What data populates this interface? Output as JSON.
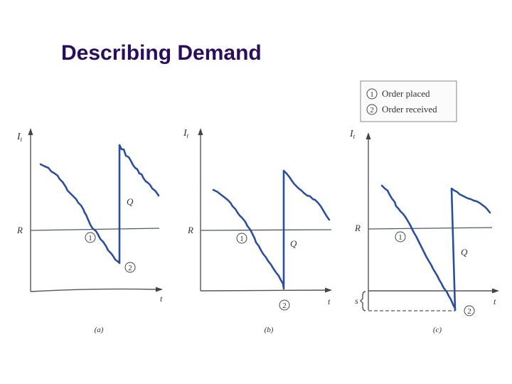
{
  "title": "Describing Demand",
  "legend": {
    "items": [
      {
        "marker": "1",
        "label": "Order placed"
      },
      {
        "marker": "2",
        "label": "Order received"
      }
    ]
  },
  "panels": {
    "a": {
      "ylabel": "I",
      "ysub": "t",
      "xlabel": "t",
      "r_label": "R",
      "q_label": "Q",
      "marker1": "1",
      "marker2": "2",
      "caption": "(a)"
    },
    "b": {
      "ylabel": "I",
      "ysub": "t",
      "xlabel": "t",
      "r_label": "R",
      "q_label": "Q",
      "marker1": "1",
      "marker2": "2",
      "caption": "(b)"
    },
    "c": {
      "ylabel": "I",
      "ysub": "t",
      "xlabel": "t",
      "r_label": "R",
      "q_label": "Q",
      "s_label": "s",
      "marker1": "1",
      "marker2": "2",
      "caption": "(c)"
    }
  },
  "colors": {
    "title": "#2a0e5e",
    "curve": "#2b4f9e"
  }
}
